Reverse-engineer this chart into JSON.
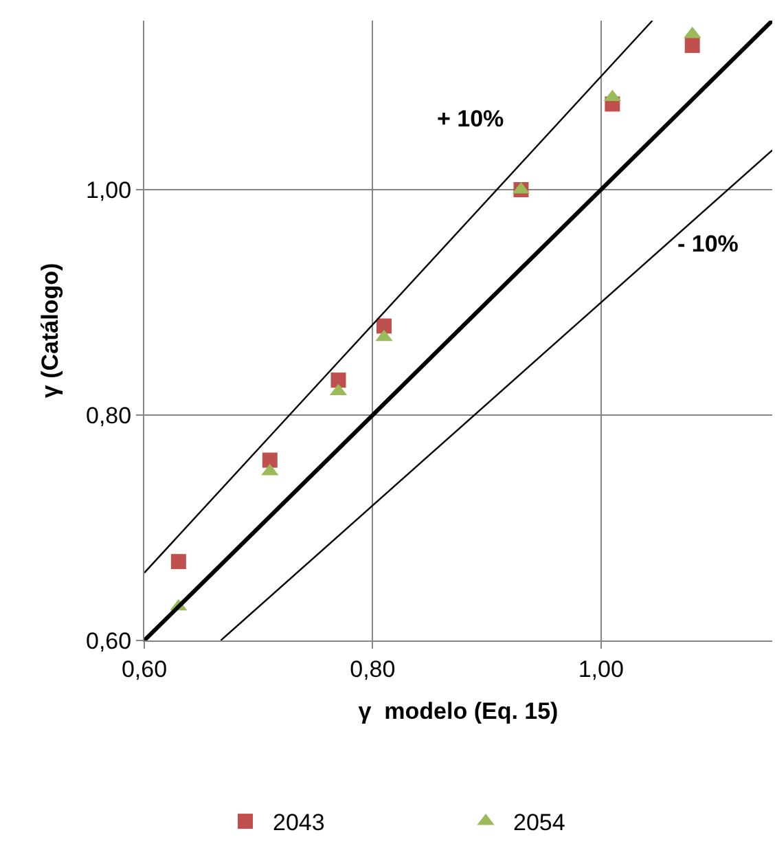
{
  "chart_data": {
    "type": "scatter",
    "xlabel": "γ  modelo (Eq. 15)",
    "ylabel": "γ (Catálogo)",
    "xlim": [
      0.6,
      1.15
    ],
    "ylim": [
      0.6,
      1.15
    ],
    "xticks": [
      {
        "value": 0.6,
        "label": "0,60"
      },
      {
        "value": 0.8,
        "label": "0,80"
      },
      {
        "value": 1.0,
        "label": "1,00"
      }
    ],
    "yticks": [
      {
        "value": 0.6,
        "label": "0,60"
      },
      {
        "value": 0.8,
        "label": "0,80"
      },
      {
        "value": 1.0,
        "label": "1,00"
      }
    ],
    "grid": true,
    "legend": "bottom",
    "annotations": [
      "+ 10%",
      "- 10%"
    ],
    "series": [
      {
        "name": "2043",
        "color": "#c0504d",
        "marker": "square",
        "x": [
          0.63,
          0.71,
          0.77,
          0.81,
          0.93,
          1.01,
          1.08
        ],
        "values": [
          0.67,
          0.76,
          0.831,
          0.879,
          1.0,
          1.076,
          1.128
        ]
      },
      {
        "name": "2054",
        "color": "#9bbb59",
        "marker": "triangle",
        "x": [
          0.63,
          0.71,
          0.77,
          0.81,
          0.93,
          1.01,
          1.08
        ],
        "values": [
          0.63,
          0.75,
          0.821,
          0.869,
          1.0,
          1.082,
          1.138
        ]
      },
      {
        "type": "line",
        "color": "#000000",
        "marker": "none",
        "x": [
          0.6,
          1.15
        ],
        "values": [
          0.6,
          1.15
        ]
      },
      {
        "type": "line",
        "color": "#000000",
        "marker": "none",
        "x": [
          0.6,
          1.045
        ],
        "values": [
          0.66,
          1.15
        ]
      },
      {
        "type": "line",
        "color": "#000000",
        "marker": "none",
        "x": [
          0.667,
          1.15
        ],
        "values": [
          0.6,
          1.035
        ]
      }
    ]
  }
}
